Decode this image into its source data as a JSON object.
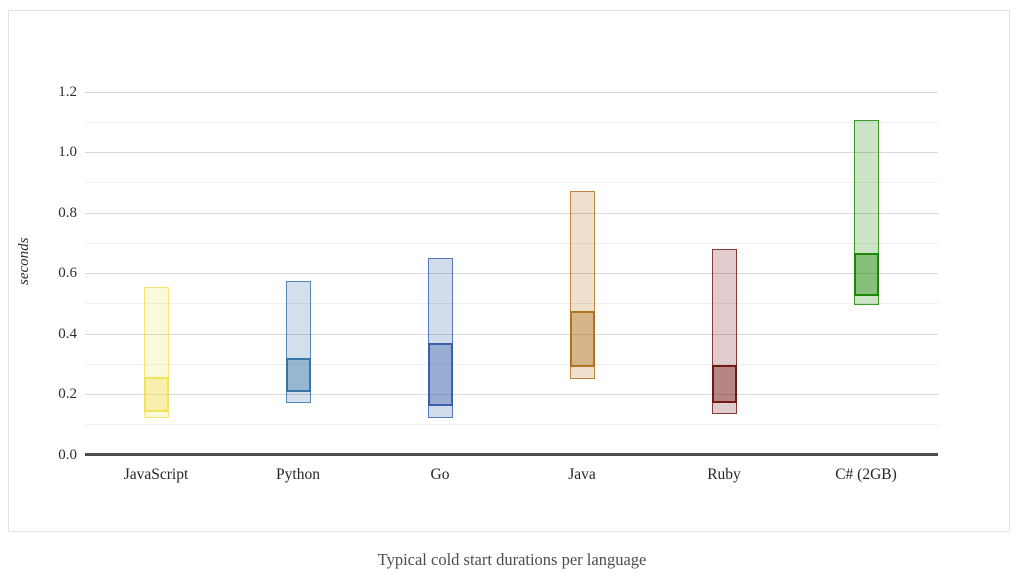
{
  "chart_data": {
    "type": "bar",
    "subtype": "floating-range-bars-with-inner-quartile-box",
    "title": "Typical cold start durations per language",
    "ylabel": "seconds",
    "unit": "seconds",
    "ylim": [
      0.0,
      1.3
    ],
    "ytick_labels": [
      "0.0",
      "0.2",
      "0.4",
      "0.6",
      "0.8",
      "1.0",
      "1.2"
    ],
    "ytick_major_step": 0.2,
    "ytick_minor_step": 0.1,
    "grid": "horizontal-only",
    "legend": "none",
    "categories": [
      "JavaScript",
      "Python",
      "Go",
      "Java",
      "Ruby",
      "C# (2GB)"
    ],
    "bars": [
      {
        "label": "JavaScript",
        "color": "#F1E05A",
        "range_low": 0.12,
        "range_high": 0.555,
        "core_low": 0.14,
        "core_high": 0.255
      },
      {
        "label": "Python",
        "color": "#3572A5",
        "range_low": 0.17,
        "range_high": 0.575,
        "core_low": 0.205,
        "core_high": 0.32
      },
      {
        "label": "Go",
        "color": "#375EAB",
        "range_low": 0.12,
        "range_high": 0.65,
        "core_low": 0.16,
        "core_high": 0.37
      },
      {
        "label": "Java",
        "color": "#B07219",
        "range_low": 0.25,
        "range_high": 0.87,
        "core_low": 0.29,
        "core_high": 0.475
      },
      {
        "label": "Ruby",
        "color": "#701516",
        "range_low": 0.135,
        "range_high": 0.68,
        "core_low": 0.17,
        "core_high": 0.295
      },
      {
        "label": "C# (2GB)",
        "color": "#178600",
        "range_low": 0.495,
        "range_high": 1.105,
        "core_low": 0.525,
        "core_high": 0.665
      }
    ]
  },
  "style_colors": {
    "gridline_major": "#d8d8d8",
    "gridline_minor": "#efefef",
    "axis_line": "#4d4d4d",
    "tick_text": "#2e2e2e",
    "title_text": "#4d4d4d",
    "card_border": "#e2e2e2",
    "background": "#ffffff"
  }
}
